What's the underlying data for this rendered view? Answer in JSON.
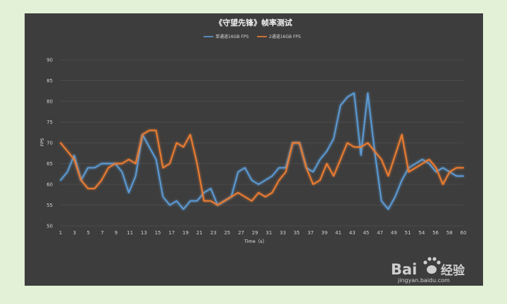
{
  "chart_data": {
    "type": "line",
    "title": "《守望先锋》帧率测试",
    "xlabel": "Time（s）",
    "ylabel": "FPS",
    "ylim": [
      50,
      90
    ],
    "yticks": [
      50,
      55,
      60,
      65,
      70,
      75,
      80,
      85,
      90
    ],
    "x": [
      1,
      2,
      3,
      4,
      5,
      6,
      7,
      8,
      9,
      10,
      11,
      12,
      13,
      14,
      15,
      16,
      17,
      18,
      19,
      20,
      21,
      22,
      23,
      24,
      25,
      26,
      27,
      28,
      29,
      30,
      31,
      32,
      33,
      34,
      35,
      36,
      37,
      38,
      39,
      40,
      41,
      42,
      43,
      44,
      45,
      46,
      47,
      48,
      49,
      50,
      51,
      52,
      53,
      54,
      55,
      56,
      57,
      58,
      59,
      60
    ],
    "xtick_labels": [
      "1",
      "3",
      "5",
      "7",
      "9",
      "11",
      "13",
      "15",
      "17",
      "19",
      "21",
      "23",
      "25",
      "27",
      "29",
      "31",
      "33",
      "35",
      "37",
      "39",
      "41",
      "43",
      "45",
      "47",
      "49",
      "51",
      "54",
      "56",
      "58",
      "60"
    ],
    "grid": true,
    "legend_position": "top",
    "series": [
      {
        "name": "单通道16GB FPS",
        "color": "#5b9bd5",
        "values": [
          61,
          63,
          67,
          61,
          64,
          64,
          65,
          65,
          65,
          63,
          58,
          62,
          72,
          69,
          66,
          57,
          55,
          56,
          54,
          56,
          56,
          58,
          59,
          55,
          56,
          57,
          63,
          64,
          61,
          60,
          61,
          62,
          64,
          64,
          70,
          70,
          64,
          63,
          66,
          68,
          71,
          79,
          81,
          82,
          67,
          82,
          68,
          56,
          54,
          57,
          61,
          64,
          65,
          66,
          65,
          63,
          64,
          63,
          62,
          62
        ]
      },
      {
        "name": "2通道16GB FPS",
        "color": "#ed7d31",
        "values": [
          70,
          68,
          66,
          61,
          59,
          59,
          61,
          64,
          65,
          65,
          66,
          65,
          72,
          73,
          73,
          64,
          65,
          70,
          69,
          72,
          65,
          56,
          56,
          55,
          56,
          57,
          58,
          57,
          56,
          58,
          57,
          58,
          61,
          63,
          70,
          70,
          64,
          60,
          61,
          65,
          62,
          66,
          70,
          69,
          69,
          70,
          68,
          66,
          62,
          67,
          72,
          63,
          64,
          65,
          66,
          64,
          60,
          63,
          64,
          64
        ]
      }
    ]
  },
  "watermark": {
    "brand": "Bai",
    "brand_tail": "经验",
    "url": "jingyan.baidu.com"
  }
}
